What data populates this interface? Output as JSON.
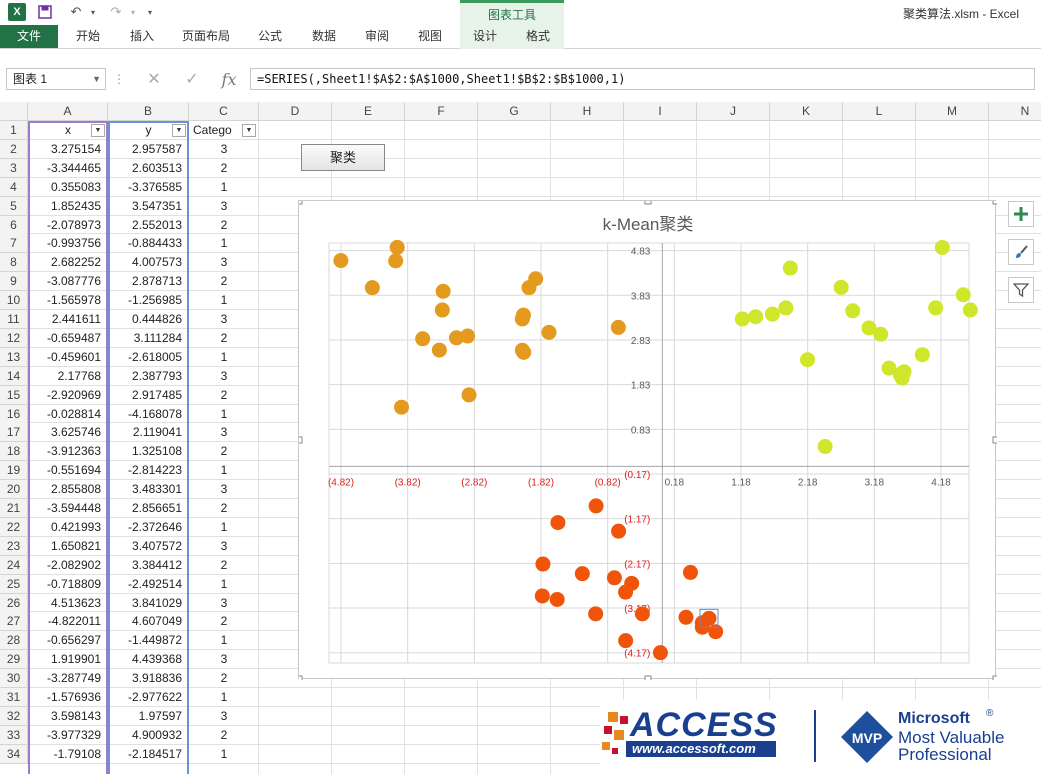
{
  "window": {
    "title": "聚类算法.xlsm - Excel"
  },
  "ribbon": {
    "tabs": [
      {
        "label": "文件"
      },
      {
        "label": "开始"
      },
      {
        "label": "插入"
      },
      {
        "label": "页面布局"
      },
      {
        "label": "公式"
      },
      {
        "label": "数据"
      },
      {
        "label": "审阅"
      },
      {
        "label": "视图"
      },
      {
        "label": "设计"
      },
      {
        "label": "格式"
      }
    ],
    "contextual_group": "图表工具"
  },
  "formula_bar": {
    "name_box": "图表 1",
    "fx": "fx",
    "formula": "=SERIES(,Sheet1!$A$2:$A$1000,Sheet1!$B$2:$B$1000,1)"
  },
  "sheet": {
    "columns": [
      "A",
      "B",
      "C",
      "D",
      "E",
      "F",
      "G",
      "H",
      "I",
      "J",
      "K",
      "L",
      "M",
      "N"
    ],
    "headers": {
      "x": "x",
      "y": "y",
      "category": "Catego"
    },
    "rows": [
      {
        "r": "1"
      },
      {
        "r": "2",
        "x": "3.275154",
        "y": "2.957587",
        "c": "3"
      },
      {
        "r": "3",
        "x": "-3.344465",
        "y": "2.603513",
        "c": "2"
      },
      {
        "r": "4",
        "x": "0.355083",
        "y": "-3.376585",
        "c": "1"
      },
      {
        "r": "5",
        "x": "1.852435",
        "y": "3.547351",
        "c": "3"
      },
      {
        "r": "6",
        "x": "-2.078973",
        "y": "2.552013",
        "c": "2"
      },
      {
        "r": "7",
        "x": "-0.993756",
        "y": "-0.884433",
        "c": "1"
      },
      {
        "r": "8",
        "x": "2.682252",
        "y": "4.007573",
        "c": "3"
      },
      {
        "r": "9",
        "x": "-3.087776",
        "y": "2.878713",
        "c": "2"
      },
      {
        "r": "10",
        "x": "-1.565978",
        "y": "-1.256985",
        "c": "1"
      },
      {
        "r": "11",
        "x": "2.441611",
        "y": "0.444826",
        "c": "3"
      },
      {
        "r": "12",
        "x": "-0.659487",
        "y": "3.111284",
        "c": "2"
      },
      {
        "r": "13",
        "x": "-0.459601",
        "y": "-2.618005",
        "c": "1"
      },
      {
        "r": "14",
        "x": "2.17768",
        "y": "2.387793",
        "c": "3"
      },
      {
        "r": "15",
        "x": "-2.920969",
        "y": "2.917485",
        "c": "2"
      },
      {
        "r": "16",
        "x": "-0.028814",
        "y": "-4.168078",
        "c": "1"
      },
      {
        "r": "17",
        "x": "3.625746",
        "y": "2.119041",
        "c": "3"
      },
      {
        "r": "18",
        "x": "-3.912363",
        "y": "1.325108",
        "c": "2"
      },
      {
        "r": "19",
        "x": "-0.551694",
        "y": "-2.814223",
        "c": "1"
      },
      {
        "r": "20",
        "x": "2.855808",
        "y": "3.483301",
        "c": "3"
      },
      {
        "r": "21",
        "x": "-3.594448",
        "y": "2.856651",
        "c": "2"
      },
      {
        "r": "22",
        "x": "0.421993",
        "y": "-2.372646",
        "c": "1"
      },
      {
        "r": "23",
        "x": "1.650821",
        "y": "3.407572",
        "c": "3"
      },
      {
        "r": "24",
        "x": "-2.082902",
        "y": "3.384412",
        "c": "2"
      },
      {
        "r": "25",
        "x": "-0.718809",
        "y": "-2.492514",
        "c": "1"
      },
      {
        "r": "26",
        "x": "4.513623",
        "y": "3.841029",
        "c": "3"
      },
      {
        "r": "27",
        "x": "-4.822011",
        "y": "4.607049",
        "c": "2"
      },
      {
        "r": "28",
        "x": "-0.656297",
        "y": "-1.449872",
        "c": "1"
      },
      {
        "r": "29",
        "x": "1.919901",
        "y": "4.439368",
        "c": "3"
      },
      {
        "r": "30",
        "x": "-3.287749",
        "y": "3.918836",
        "c": "2"
      },
      {
        "r": "31",
        "x": "-1.576936",
        "y": "-2.977622",
        "c": "1"
      },
      {
        "r": "32",
        "x": "3.598143",
        "y": "1.97597",
        "c": "3"
      },
      {
        "r": "33",
        "x": "-3.977329",
        "y": "4.900932",
        "c": "2"
      },
      {
        "r": "34",
        "x": "-1.79108",
        "y": "-2.184517",
        "c": "1"
      }
    ],
    "button_label": "聚类"
  },
  "chart_data": {
    "type": "scatter",
    "title": "k-Mean聚类",
    "xlabel": "",
    "ylabel": "",
    "xlim": [
      -5.0,
      4.6
    ],
    "ylim": [
      -4.4,
      5.0
    ],
    "x_ticks": [
      "(4.82)",
      "(3.82)",
      "(2.82)",
      "(1.82)",
      "(0.82)",
      "0.18",
      "1.18",
      "2.18",
      "3.18",
      "4.18"
    ],
    "x_tick_values": [
      -4.82,
      -3.82,
      -2.82,
      -1.82,
      -0.82,
      0.18,
      1.18,
      2.18,
      3.18,
      4.18
    ],
    "y_ticks": [
      "4.83",
      "3.83",
      "2.83",
      "1.83",
      "0.83",
      "(0.17)",
      "(1.17)",
      "(2.17)",
      "(3.17)",
      "(4.17)"
    ],
    "y_tick_values": [
      4.83,
      3.83,
      2.83,
      1.83,
      0.83,
      -0.17,
      -1.17,
      -2.17,
      -3.17,
      -4.17
    ],
    "negative_label_color": "#d81e1e",
    "series": [
      {
        "color": "#f0540a",
        "points": [
          [
            0.355083,
            -3.376585
          ],
          [
            -0.993756,
            -0.884433
          ],
          [
            -1.565978,
            -1.256985
          ],
          [
            -0.459601,
            -2.618005
          ],
          [
            -0.028814,
            -4.168078
          ],
          [
            -0.551694,
            -2.814223
          ],
          [
            0.421993,
            -2.372646
          ],
          [
            -0.718809,
            -2.492514
          ],
          [
            -0.656297,
            -1.449872
          ],
          [
            -1.576936,
            -2.977622
          ],
          [
            -1.79108,
            -2.184517
          ],
          [
            -1.0,
            -3.3
          ],
          [
            -1.2,
            -2.4
          ],
          [
            -1.8,
            -2.9
          ],
          [
            -0.3,
            -3.3
          ],
          [
            0.7,
            -3.4
          ],
          [
            0.8,
            -3.7
          ],
          [
            0.6,
            -3.6
          ],
          [
            -0.55,
            -3.9
          ],
          [
            0.6,
            -3.5
          ]
        ]
      },
      {
        "color": "#e39a1f",
        "points": [
          [
            -3.344465,
            2.603513
          ],
          [
            -2.078973,
            2.552013
          ],
          [
            -3.087776,
            2.878713
          ],
          [
            -0.659487,
            3.111284
          ],
          [
            -2.920969,
            2.917485
          ],
          [
            -3.912363,
            1.325108
          ],
          [
            -3.594448,
            2.856651
          ],
          [
            -2.082902,
            3.384412
          ],
          [
            -4.822011,
            4.607049
          ],
          [
            -3.287749,
            3.918836
          ],
          [
            -3.977329,
            4.900932
          ],
          [
            -4.0,
            4.6
          ],
          [
            -4.35,
            4.0
          ],
          [
            -2.9,
            1.6
          ],
          [
            -3.3,
            3.5
          ],
          [
            -1.7,
            3.0
          ],
          [
            -2.1,
            2.6
          ],
          [
            -2.1,
            3.3
          ],
          [
            -2.0,
            4.0
          ],
          [
            -1.9,
            4.2
          ]
        ]
      },
      {
        "color": "#cfe62a",
        "points": [
          [
            3.275154,
            2.957587
          ],
          [
            1.852435,
            3.547351
          ],
          [
            2.682252,
            4.007573
          ],
          [
            2.441611,
            0.444826
          ],
          [
            2.17768,
            2.387793
          ],
          [
            3.625746,
            2.119041
          ],
          [
            2.855808,
            3.483301
          ],
          [
            1.650821,
            3.407572
          ],
          [
            4.513623,
            3.841029
          ],
          [
            1.919901,
            4.439368
          ],
          [
            3.598143,
            1.97597
          ],
          [
            4.62,
            3.5
          ],
          [
            4.2,
            4.9
          ],
          [
            3.9,
            2.5
          ],
          [
            3.1,
            3.1
          ],
          [
            3.4,
            2.2
          ],
          [
            1.2,
            3.3
          ],
          [
            1.4,
            3.35
          ],
          [
            4.1,
            3.55
          ],
          [
            3.57,
            2.05
          ]
        ]
      }
    ]
  },
  "chart_side_buttons": [
    {
      "icon": "plus-icon"
    },
    {
      "icon": "brush-icon"
    },
    {
      "icon": "filter-icon"
    }
  ],
  "logos": {
    "access_text": "ACCESS",
    "access_url": "www.accessoft.com",
    "mvp_badge": "MVP",
    "ms_line1": "Microsoft",
    "ms_line2": "Most Valuable",
    "ms_line3": "Professional"
  }
}
